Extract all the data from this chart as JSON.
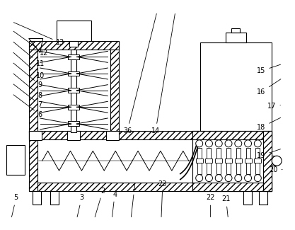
{
  "bg_color": "#ffffff",
  "line_color": "#000000",
  "fig_width": 4.17,
  "fig_height": 3.25,
  "dpi": 100
}
